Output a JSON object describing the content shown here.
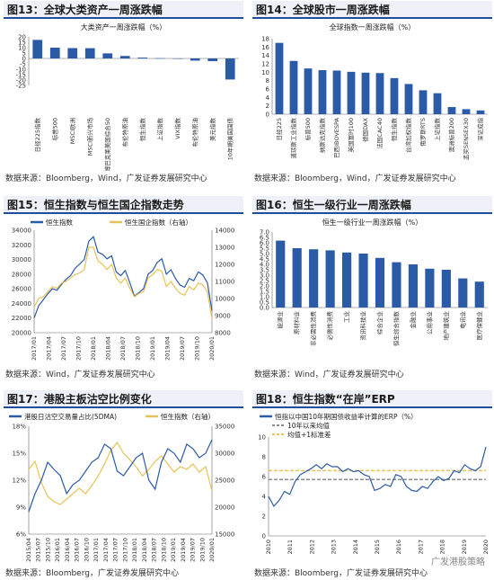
{
  "panels": {
    "p13": {
      "title": "图13：全球大类资产一周涨跌幅",
      "source": "数据来源：Bloomberg，Wind，广发证券发展研究中心"
    },
    "p14": {
      "title": "图14：全球股市一周涨跌幅",
      "source": "数据来源：Bloomberg，Wind，广发证券发展研究中心"
    },
    "p15": {
      "title": "图15：恒生指数与恒生国企指数走势",
      "source": "数据来源：Wind，广发证券发展研究中心"
    },
    "p16": {
      "title": "图16：恒生一级行业一周涨跌幅",
      "source": "数据来源：Wind，广发证券发展研究中心"
    },
    "p17": {
      "title": "图17：港股主板沽空比例变化",
      "source": "数据来源：Bloomberg，广发证券发展研究中心"
    },
    "p18": {
      "title": "图18：恒生指数“在岸”ERP",
      "source": "数据来源：Bloomberg，广发证券发展研究中心"
    }
  },
  "watermark": "广发港股策略",
  "chart_data": [
    {
      "id": "c13",
      "type": "bar",
      "title": "大类资产一周涨跌幅（%）",
      "categories": [
        "日经225指数",
        "标普500",
        "MSCI欧洲",
        "MSCI新兴市场",
        "彭博巴克莱美国综合50",
        "布伦特原油",
        "恒生指数",
        "上证指数",
        "VIX指数",
        "布伦特原油",
        "美元指数",
        "10年期美国国债"
      ],
      "values": [
        17.2,
        10.0,
        9.6,
        9.5,
        4.7,
        2.3,
        0.8,
        0.2,
        -0.3,
        -2.0,
        -2.5,
        -19.5
      ],
      "ylim": [
        -25,
        20
      ],
      "yticks": [
        -25,
        -20,
        -15,
        -10,
        -5,
        0,
        5,
        10,
        15,
        20
      ],
      "color": "#2b5aa7"
    },
    {
      "id": "c14",
      "type": "bar",
      "title": "全球指数一周涨跌幅（%）",
      "categories": [
        "日经225",
        "道琼斯工业指数",
        "标普500",
        "纳斯达克指数",
        "巴西IBOVESPA",
        "英国富时100",
        "德国DAX",
        "法国CAC40",
        "恒生指数",
        "台湾加权指数",
        "俄罗斯RTS",
        "上证指数",
        "澳洲标普200",
        "孟买SENSEX30",
        "深证成指"
      ],
      "values": [
        17.0,
        12.7,
        10.9,
        10.5,
        10.4,
        10.1,
        9.9,
        9.8,
        8.6,
        7.2,
        5.7,
        5.0,
        1.7,
        1.2,
        0.9
      ],
      "ylim": [
        0,
        18
      ],
      "yticks": [
        0,
        2,
        4,
        6,
        8,
        10,
        12,
        14,
        16,
        18
      ],
      "color": "#2b5aa7"
    },
    {
      "id": "c15",
      "type": "line",
      "legend": [
        "恒生指数",
        "恒生国企指数（右轴）"
      ],
      "colors": [
        "#2b5aa7",
        "#e6c25a"
      ],
      "x_ticks": [
        "2017/01",
        "2017/04",
        "2017/07",
        "2017/10",
        "2018/01",
        "2018/04",
        "2018/07",
        "2018/10",
        "2019/01",
        "2019/04",
        "2019/07",
        "2019/10",
        "2020/01"
      ],
      "ylim_left": [
        20000,
        34000
      ],
      "yticks_left": [
        20000,
        22000,
        24000,
        26000,
        28000,
        30000,
        32000,
        34000
      ],
      "ylim_right": [
        8000,
        14000
      ],
      "yticks_right": [
        8000,
        9000,
        10000,
        11000,
        12000,
        13000,
        14000
      ],
      "series": [
        {
          "name": "恒生指数",
          "axis": "left",
          "values": [
            22000,
            23700,
            24500,
            25300,
            26000,
            25800,
            26600,
            27300,
            27800,
            28800,
            29400,
            30000,
            32500,
            33100,
            31000,
            30700,
            30100,
            30500,
            28300,
            27800,
            28500,
            26800,
            25000,
            25500,
            26000,
            28000,
            28500,
            29600,
            30100,
            28000,
            28600,
            27400,
            26500,
            26200,
            27400,
            27100,
            28300,
            27900,
            26800,
            23000
          ]
        },
        {
          "name": "恒生国企指数（右轴）",
          "axis": "right",
          "values": [
            9500,
            10000,
            10100,
            10400,
            10700,
            10600,
            10900,
            11000,
            11200,
            11400,
            11500,
            11700,
            13000,
            13000,
            12200,
            12000,
            11700,
            12000,
            11200,
            10900,
            11200,
            10600,
            10100,
            10300,
            10400,
            11200,
            11400,
            11700,
            11600,
            10700,
            11000,
            10600,
            10300,
            10200,
            10700,
            10500,
            10900,
            10800,
            10400,
            8800
          ]
        }
      ]
    },
    {
      "id": "c16",
      "type": "bar",
      "title": "恒生一级行业一周涨跌幅（%）",
      "categories": [
        "能源业",
        "原材料业",
        "非必需性消费",
        "必需性消费",
        "工业",
        "资讯科技业",
        "综合企业",
        "恒生综合指数",
        "金融业",
        "公用事业",
        "地产建筑业",
        "电讯业",
        "医疗保健业"
      ],
      "values": [
        6.2,
        5.5,
        5.4,
        5.3,
        5.1,
        5.0,
        4.6,
        4.2,
        4.0,
        3.6,
        3.5,
        2.7,
        2.4
      ],
      "ylim": [
        0,
        7
      ],
      "yticks": [
        0,
        0.5,
        1,
        1.5,
        2,
        2.5,
        3,
        3.5,
        4,
        4.5,
        5,
        5.5,
        6,
        6.5,
        7
      ],
      "color": "#2b5aa7"
    },
    {
      "id": "c17",
      "type": "line",
      "legend": [
        "港股日沽空交易量占比(5DMA)",
        "恒生指数（右轴）"
      ],
      "colors": [
        "#2b5aa7",
        "#e6c25a"
      ],
      "x_ticks": [
        "2015/04",
        "2015/07",
        "2015/10",
        "2016/01",
        "2016/04",
        "2016/07",
        "2016/10",
        "2017/01",
        "2017/04",
        "2017/07",
        "2017/10",
        "2018/01",
        "2018/04",
        "2018/07",
        "2018/10",
        "2019/01",
        "2019/04",
        "2019/07",
        "2019/10",
        "2020/01"
      ],
      "ylim_left": [
        6,
        18
      ],
      "yticks_left": [
        6,
        9,
        12,
        15,
        18
      ],
      "ylim_right": [
        15000,
        35000
      ],
      "yticks_right": [
        15000,
        20000,
        25000,
        30000,
        35000
      ],
      "series": [
        {
          "name": "港股日沽空交易量占比(5DMA)",
          "axis": "left",
          "values": [
            8.5,
            10.5,
            12.0,
            14.0,
            13.2,
            12.5,
            10.5,
            11.5,
            12.0,
            13.0,
            14.0,
            14.5,
            16.0,
            15.5,
            13.0,
            12.5,
            13.5,
            14.5,
            15.0,
            12.0,
            11.0,
            14.0,
            15.5,
            15.0,
            14.0,
            16.0,
            15.5,
            14.5,
            15.0,
            16.5
          ]
        },
        {
          "name": "恒生指数（右轴）",
          "axis": "right",
          "values": [
            27000,
            28500,
            24500,
            22000,
            21000,
            20500,
            21500,
            22500,
            23500,
            22500,
            24000,
            25800,
            28000,
            30500,
            32000,
            30000,
            28800,
            27500,
            25800,
            27000,
            28500,
            29500,
            28000,
            26500,
            27500,
            27000,
            28000,
            26500,
            27500,
            23000
          ]
        }
      ]
    },
    {
      "id": "c18",
      "type": "line",
      "title": "恒指以中国10年期国债收益率计算的ERP（%）",
      "legend": [
        "恒指以中国10年期国债收益率计算的ERP（%）",
        "10年以来均值",
        "均值+1标准差"
      ],
      "colors": [
        "#2b5aa7",
        "#8c8c8c",
        "#e6c25a"
      ],
      "x_ticks": [
        "2010",
        "2011",
        "2012",
        "2013",
        "2014",
        "2015",
        "2016",
        "2017",
        "2018",
        "2019",
        "2020"
      ],
      "ylim": [
        0,
        10
      ],
      "yticks": [
        0,
        2,
        4,
        6,
        8,
        10
      ],
      "mean": 5.7,
      "mean_plus_sd": 6.6,
      "values": [
        4.0,
        3.0,
        3.6,
        4.5,
        4.2,
        5.5,
        6.2,
        6.5,
        6.8,
        7.2,
        6.8,
        7.3,
        7.0,
        7.0,
        6.5,
        6.8,
        6.5,
        6.6,
        6.2,
        6.0,
        4.6,
        4.8,
        5.2,
        5.0,
        6.2,
        6.0,
        5.0,
        4.6,
        4.5,
        5.0,
        4.8,
        5.5,
        6.0,
        5.6,
        5.8,
        6.6,
        6.4,
        7.2,
        6.8,
        6.6,
        7.0,
        9.0
      ]
    }
  ]
}
